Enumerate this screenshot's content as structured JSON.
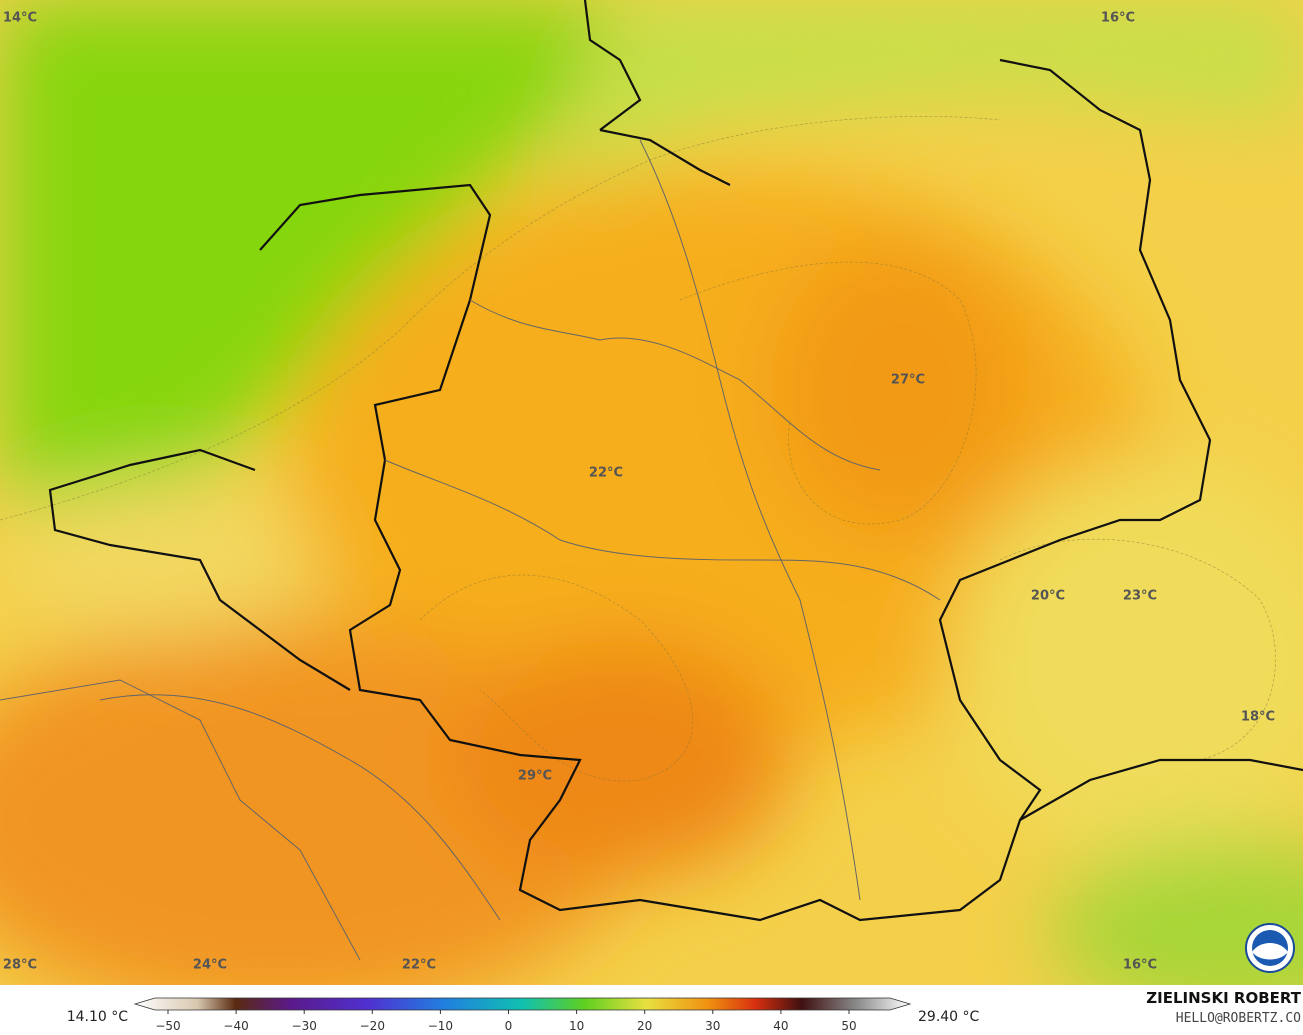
{
  "map": {
    "labels": [
      "14°C",
      "16°C",
      "27°C",
      "22°C",
      "20°C",
      "23°C",
      "18°C",
      "29°C",
      "28°C",
      "24°C",
      "22°C",
      "16°C"
    ],
    "colorbar": {
      "min_label": "14.10 °C",
      "max_label": "29.40 °C",
      "ticks": [
        "−50",
        "−40",
        "−30",
        "−20",
        "−10",
        "0",
        "10",
        "20",
        "30",
        "40",
        "50"
      ]
    },
    "credit": {
      "name": "ZIELINSKI ROBERT",
      "email": "HELLO@ROBERTZ.CO"
    }
  }
}
